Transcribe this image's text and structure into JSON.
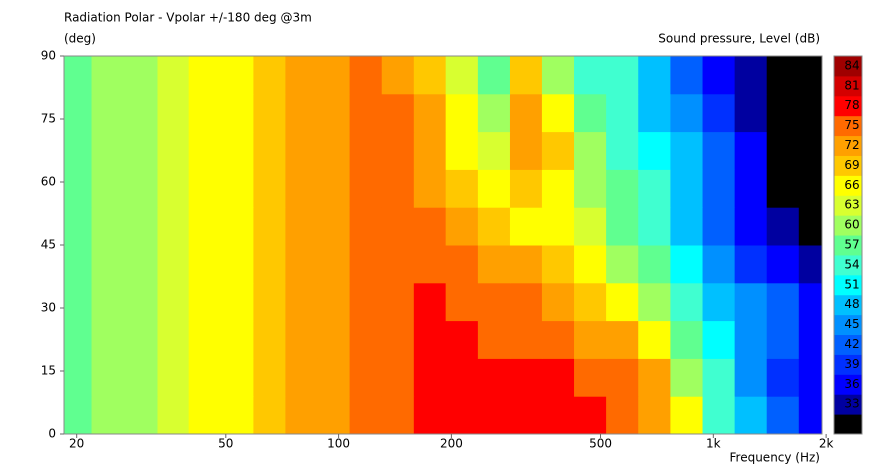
{
  "chart_data": {
    "type": "contour",
    "title": "Radiation Polar - Vpolar +/-180 deg @3m",
    "y_label": "(deg)",
    "colorbar_label": "Sound pressure, Level  (dB)",
    "x_label": "Frequency  (Hz)",
    "x_scale": "log",
    "xlim": [
      18.5,
      1950
    ],
    "xticks": [
      20,
      50,
      100,
      200,
      500,
      {
        "value": 1000,
        "label": "1k"
      },
      {
        "value": 2000,
        "label": "2k"
      }
    ],
    "ylim": [
      0,
      90
    ],
    "yticks": [
      0,
      15,
      30,
      45,
      60,
      75,
      90
    ],
    "x": [
      20,
      24,
      30,
      36,
      44,
      54,
      65,
      80,
      97,
      118,
      144,
      175,
      213,
      260,
      316,
      385,
      469,
      571,
      696,
      848,
      1033,
      1258,
      1532,
      1866
    ],
    "y": [
      4.5,
      13.5,
      22.5,
      31.5,
      40.5,
      49.5,
      58.5,
      67.5,
      76.5,
      85.5
    ],
    "z": [
      [
        57,
        60,
        62,
        64,
        66,
        68,
        70,
        72,
        74,
        76,
        77,
        78,
        78,
        78,
        78,
        78,
        78,
        77,
        74,
        66,
        56,
        48,
        42,
        38
      ],
      [
        57,
        60,
        62,
        64,
        66,
        68,
        70,
        72,
        74,
        76,
        77,
        78,
        78,
        78,
        78,
        78,
        77,
        76,
        72,
        62,
        54,
        46,
        40,
        36
      ],
      [
        57,
        60,
        62,
        64,
        66,
        68,
        70,
        72,
        74,
        76,
        77,
        78,
        78,
        77,
        77,
        76,
        74,
        72,
        66,
        58,
        51,
        46,
        42,
        38
      ],
      [
        57,
        60,
        62,
        64,
        66,
        68,
        70,
        72,
        74,
        76,
        77,
        78,
        77,
        76,
        75,
        73,
        70,
        66,
        60,
        54,
        48,
        45,
        42,
        36
      ],
      [
        57,
        60,
        62,
        64,
        66,
        68,
        70,
        72,
        74,
        76,
        77,
        77,
        75,
        73,
        72,
        69,
        66,
        62,
        57,
        52,
        46,
        41,
        36,
        33
      ],
      [
        57,
        60,
        62,
        64,
        66,
        68,
        70,
        72,
        74,
        76,
        77,
        75,
        72,
        70,
        67,
        68,
        63,
        59,
        55,
        50,
        44,
        38,
        33,
        31
      ],
      [
        57,
        60,
        62,
        64,
        66,
        68,
        70,
        72,
        74,
        76,
        77,
        74,
        70,
        66,
        70,
        68,
        60,
        57,
        54,
        49,
        43,
        37,
        32,
        30
      ],
      [
        57,
        60,
        62,
        64,
        66,
        68,
        70,
        72,
        74,
        76,
        77,
        73,
        68,
        63,
        72,
        70,
        60,
        55,
        52,
        48,
        42,
        36,
        32,
        30
      ],
      [
        57,
        60,
        62,
        64,
        66,
        68,
        70,
        72,
        74,
        76,
        76,
        72,
        66,
        61,
        73,
        66,
        58,
        54,
        50,
        46,
        40,
        35,
        31,
        30
      ],
      [
        57,
        60,
        62,
        64,
        66,
        68,
        70,
        72,
        74,
        75,
        74,
        71,
        64,
        57,
        70,
        62,
        55,
        55,
        50,
        44,
        38,
        34,
        31,
        30
      ]
    ],
    "levels": [
      30,
      33,
      36,
      39,
      42,
      45,
      48,
      51,
      54,
      57,
      60,
      63,
      66,
      69,
      72,
      75,
      78,
      81,
      84
    ],
    "colors": [
      "#000000",
      "#0000a0",
      "#0000ff",
      "#0030ff",
      "#0060ff",
      "#0090ff",
      "#00c0ff",
      "#00ffff",
      "#40ffd0",
      "#60ff90",
      "#a0ff60",
      "#d8ff30",
      "#ffff00",
      "#ffc800",
      "#ffa000",
      "#ff6a00",
      "#ff0000",
      "#d40000",
      "#a00000"
    ]
  }
}
